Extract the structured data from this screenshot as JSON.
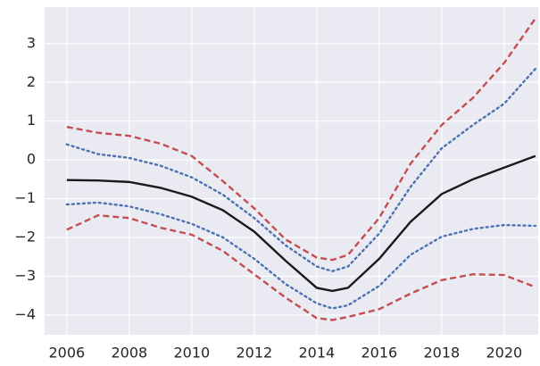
{
  "chart_data": {
    "type": "line",
    "x": [
      2006,
      2007,
      2008,
      2009,
      2010,
      2011,
      2012,
      2013,
      2014,
      2014.5,
      2015,
      2016,
      2017,
      2018,
      2019,
      2020,
      2021
    ],
    "series": [
      {
        "color": "#c44e52",
        "dash": "dashed",
        "values": [
          0.85,
          0.7,
          0.62,
          0.42,
          0.1,
          -0.55,
          -1.25,
          -2.05,
          -2.52,
          -2.58,
          -2.45,
          -1.5,
          -0.1,
          0.9,
          1.6,
          2.5,
          3.65
        ]
      },
      {
        "color": "#4c72b0",
        "dash": "dotted",
        "values": [
          0.4,
          0.15,
          0.05,
          -0.15,
          -0.45,
          -0.9,
          -1.5,
          -2.2,
          -2.75,
          -2.87,
          -2.75,
          -1.9,
          -0.7,
          0.3,
          0.9,
          1.45,
          2.35
        ]
      },
      {
        "color": "#1a1a1a",
        "dash": "solid",
        "values": [
          -0.52,
          -0.53,
          -0.57,
          -0.72,
          -0.95,
          -1.3,
          -1.85,
          -2.6,
          -3.3,
          -3.38,
          -3.3,
          -2.55,
          -1.6,
          -0.88,
          -0.5,
          -0.2,
          0.1
        ]
      },
      {
        "color": "#4c72b0",
        "dash": "dotted",
        "values": [
          -1.15,
          -1.1,
          -1.2,
          -1.4,
          -1.65,
          -2.0,
          -2.55,
          -3.2,
          -3.7,
          -3.83,
          -3.75,
          -3.25,
          -2.45,
          -1.98,
          -1.78,
          -1.68,
          -1.7
        ]
      },
      {
        "color": "#c44e52",
        "dash": "dashed",
        "values": [
          -1.8,
          -1.43,
          -1.5,
          -1.75,
          -1.93,
          -2.35,
          -2.95,
          -3.55,
          -4.08,
          -4.13,
          -4.05,
          -3.85,
          -3.45,
          -3.1,
          -2.95,
          -2.97,
          -3.28
        ]
      }
    ],
    "xlim": [
      2005.29,
      2021.09
    ],
    "ylim": [
      -4.51,
      3.94
    ],
    "xticks": [
      2006,
      2008,
      2010,
      2012,
      2014,
      2016,
      2018,
      2020
    ],
    "yticks": [
      {
        "value": -4,
        "label": "−4"
      },
      {
        "value": -3,
        "label": "−3"
      },
      {
        "value": -2,
        "label": "−2"
      },
      {
        "value": -1,
        "label": "−1"
      },
      0,
      1,
      2,
      3
    ],
    "grid": true,
    "background": "#eaeaf2"
  }
}
